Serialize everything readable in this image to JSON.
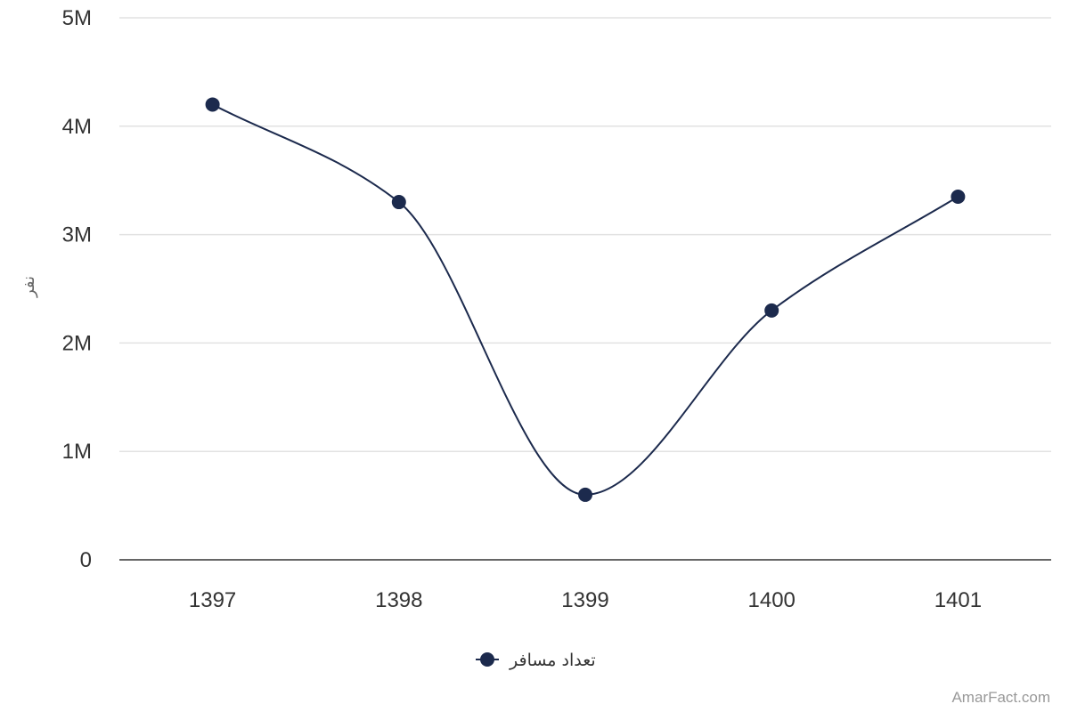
{
  "chart_data": {
    "type": "line",
    "smooth": true,
    "categories": [
      "1397",
      "1398",
      "1399",
      "1400",
      "1401"
    ],
    "series": [
      {
        "name": "تعداد مسافر",
        "values": [
          4200000,
          3300000,
          600000,
          2300000,
          3350000
        ],
        "color": "#1c2a4d"
      }
    ],
    "ylabel": "نفر",
    "ylim": [
      0,
      5000000
    ],
    "yticks": [
      {
        "value": 0,
        "label": "0"
      },
      {
        "value": 1000000,
        "label": "1M"
      },
      {
        "value": 2000000,
        "label": "2M"
      },
      {
        "value": 3000000,
        "label": "3M"
      },
      {
        "value": 4000000,
        "label": "4M"
      },
      {
        "value": 5000000,
        "label": "5M"
      }
    ],
    "grid": true,
    "legend_position": "bottom-center",
    "credit": "AmarFact.com"
  }
}
